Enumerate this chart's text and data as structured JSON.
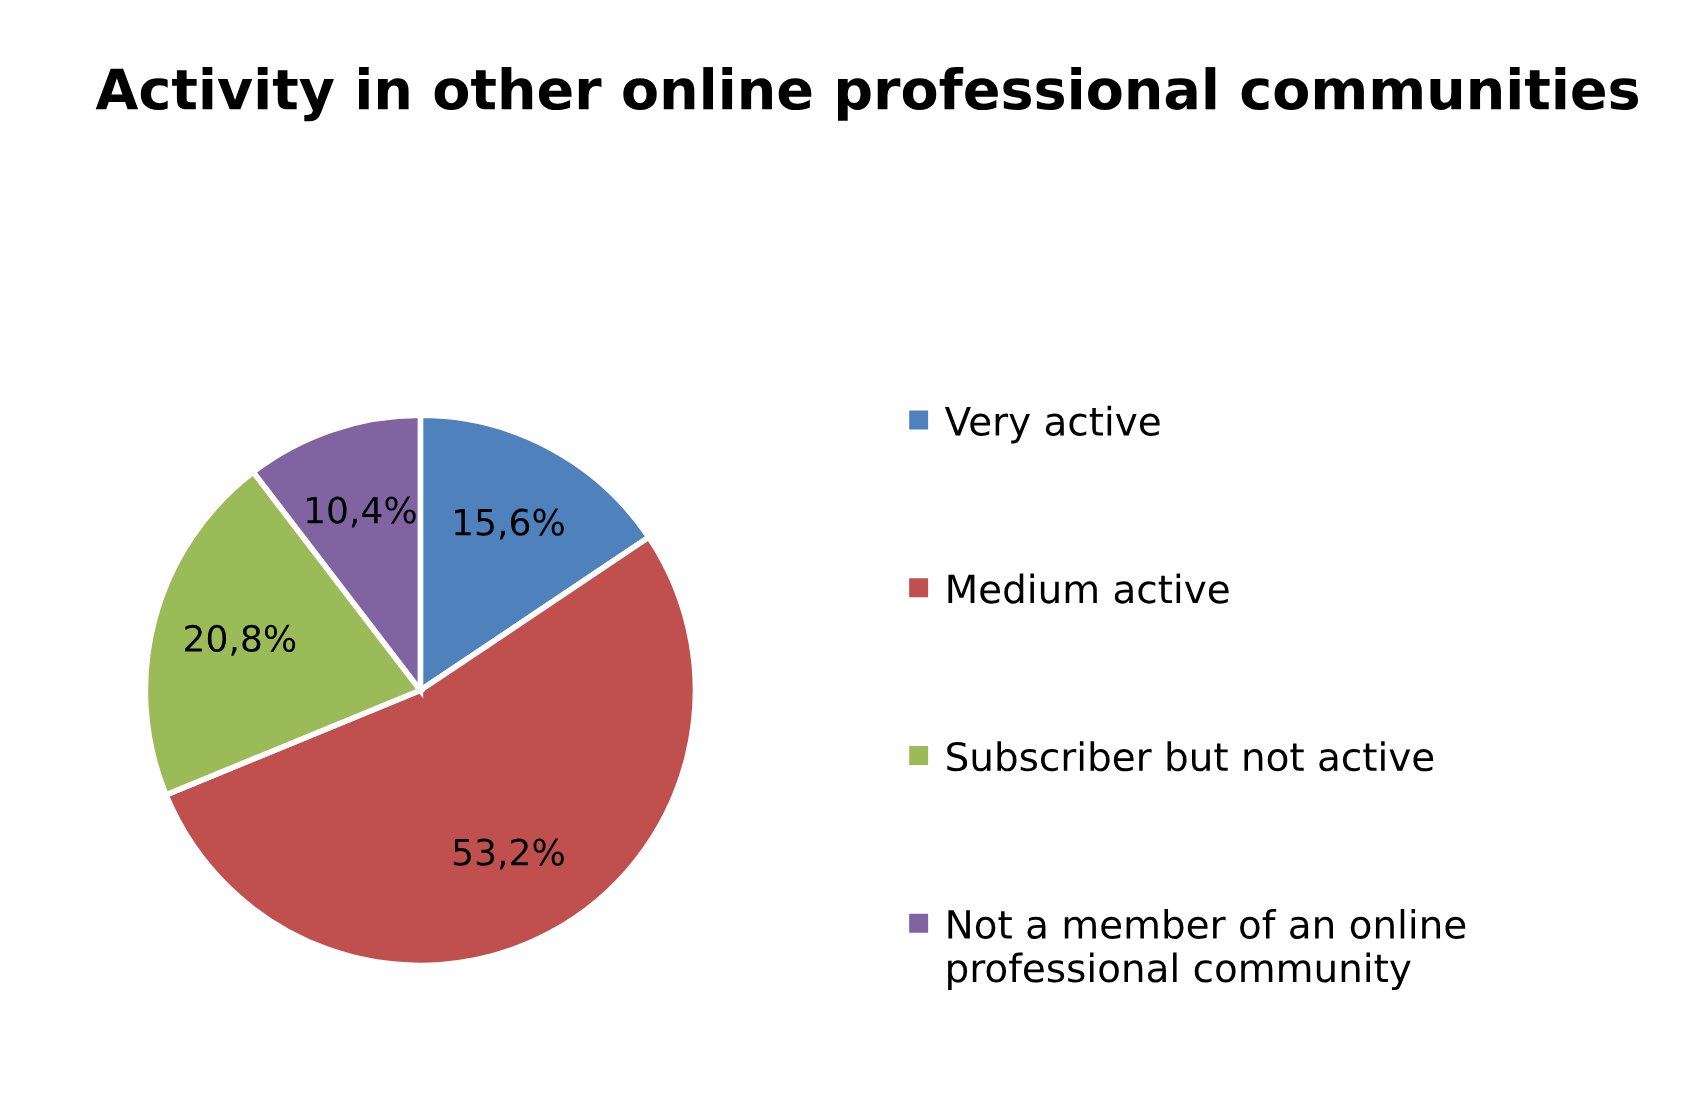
{
  "chart_data": {
    "type": "pie",
    "title": "Activity in other online professional communities",
    "categories": [
      "Very active",
      "Medium active",
      "Subscriber but not active",
      "Not a member of an online professional community"
    ],
    "values": [
      15.6,
      53.2,
      20.8,
      10.4
    ],
    "colors": [
      "#4f81bd",
      "#c0504d",
      "#9bbb59",
      "#8064a2"
    ],
    "value_labels": [
      "15,6%",
      "53,2%",
      "20,8%",
      "10,4%"
    ],
    "legend": "right"
  }
}
